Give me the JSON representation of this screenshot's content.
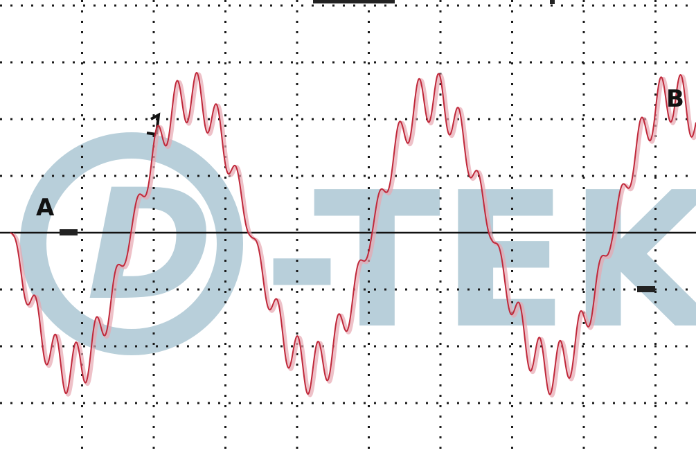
{
  "watermark": {
    "monogram": "D",
    "text": "-TEK",
    "color": "#7fa9bc"
  },
  "colors": {
    "trace": "#c0283a",
    "trace_shadow": "#e7a7b1",
    "baseline": "#111111",
    "grid": "#1a1a1a",
    "background": "#ffffff"
  },
  "markers": [
    {
      "id": "A",
      "label": "A"
    },
    {
      "id": "B",
      "label": "B"
    }
  ],
  "chart_data": {
    "type": "line",
    "title": "",
    "xlabel": "",
    "ylabel": "",
    "grid": true,
    "x_divisions": 10,
    "y_divisions": 8,
    "xlim": [
      0,
      9.7
    ],
    "ylim": [
      -4,
      4
    ],
    "series": [
      {
        "fundamental_cycles": 2.85,
        "fundamental_amplitude_div": 2.4,
        "fundamental_phase_deg": 180,
        "ripple_cycles": 34,
        "ripple_amplitude_div": 0.45,
        "points": 2400
      }
    ]
  }
}
